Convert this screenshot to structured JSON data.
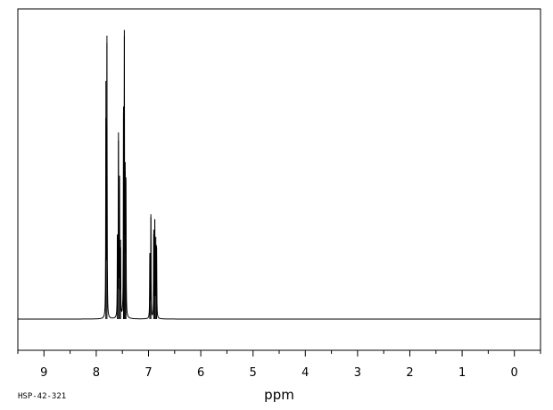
{
  "chart_data": {
    "type": "line",
    "title": "",
    "xlabel": "ppm",
    "ylabel": "",
    "xlim": [
      9.5,
      -0.5
    ],
    "x_reversed": true,
    "xticks": [
      9,
      8,
      7,
      6,
      5,
      4,
      3,
      2,
      1,
      0
    ],
    "xtick_labels": [
      "9",
      "8",
      "7",
      "6",
      "5",
      "4",
      "3",
      "2",
      "1",
      "0"
    ],
    "y_units": "relative intensity (baseline = 0, tallest peak = 1)",
    "ylim": [
      -0.1,
      1.1
    ],
    "grid": false,
    "legend": "none",
    "baseline": 0,
    "peaks": [
      {
        "ppm": 7.815,
        "intensity": 0.84
      },
      {
        "ppm": 7.795,
        "intensity": 1.0
      },
      {
        "ppm": 7.595,
        "intensity": 0.29
      },
      {
        "ppm": 7.575,
        "intensity": 0.63
      },
      {
        "ppm": 7.555,
        "intensity": 0.5
      },
      {
        "ppm": 7.535,
        "intensity": 0.28
      },
      {
        "ppm": 7.478,
        "intensity": 0.75
      },
      {
        "ppm": 7.462,
        "intensity": 1.0
      },
      {
        "ppm": 7.447,
        "intensity": 0.52
      },
      {
        "ppm": 7.432,
        "intensity": 0.5
      },
      {
        "ppm": 6.975,
        "intensity": 0.22
      },
      {
        "ppm": 6.955,
        "intensity": 0.37
      },
      {
        "ppm": 6.9,
        "intensity": 0.3
      },
      {
        "ppm": 6.88,
        "intensity": 0.35
      },
      {
        "ppm": 6.86,
        "intensity": 0.29
      },
      {
        "ppm": 6.845,
        "intensity": 0.25
      }
    ]
  },
  "footer": {
    "code": "HSP-42-321"
  }
}
